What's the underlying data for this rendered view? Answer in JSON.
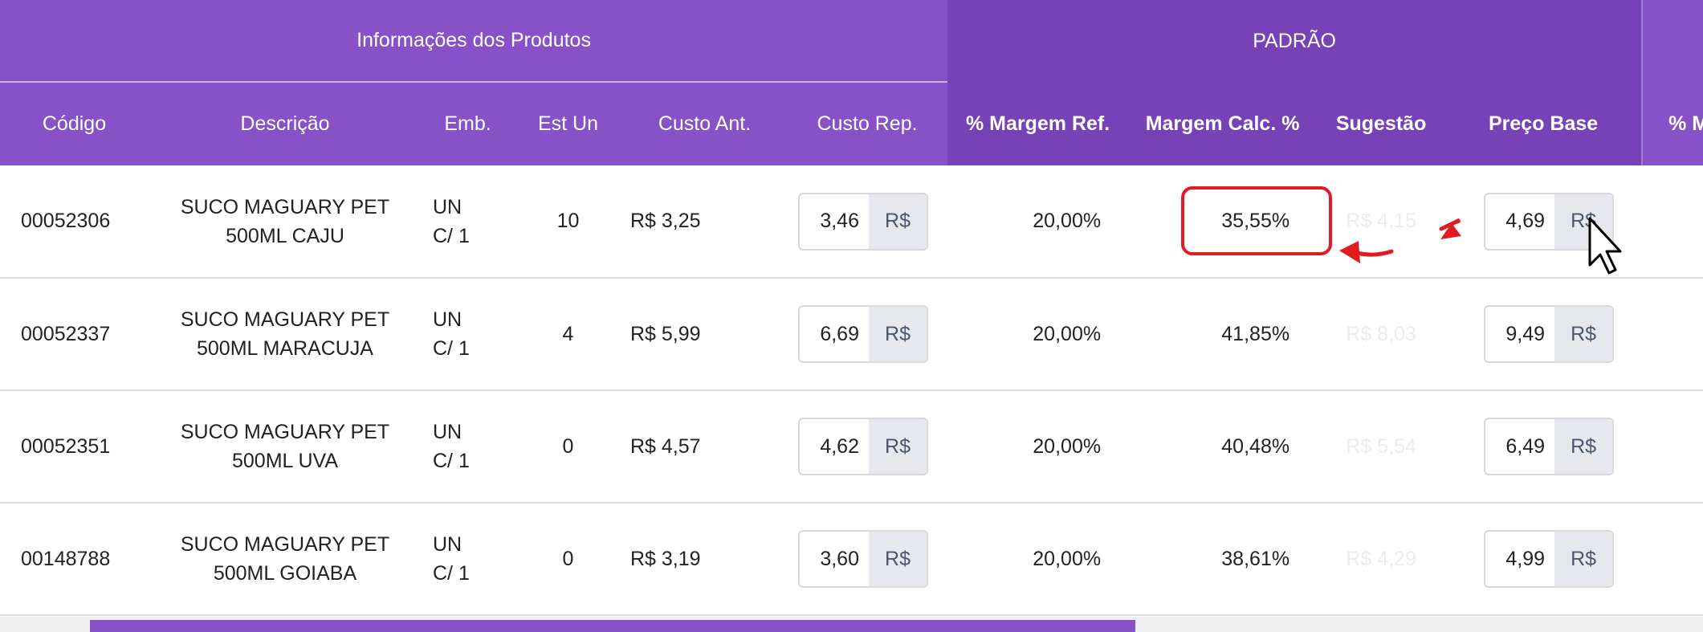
{
  "header_groups": {
    "info": "Informações dos Produtos",
    "padrao": "PADRÃO",
    "next": ""
  },
  "columns": {
    "codigo": "Código",
    "descricao": "Descrição",
    "emb": "Emb.",
    "est_un": "Est Un",
    "custo_ant": "Custo Ant.",
    "custo_rep": "Custo Rep.",
    "margem_ref": "% Margem Ref.",
    "margem_calc": "Margem Calc. %",
    "sugestao": "Sugestão",
    "preco_base": "Preço Base",
    "next": "% M"
  },
  "currency_label": "R$",
  "rows": [
    {
      "codigo": "00052306",
      "desc_line1": "SUCO MAGUARY PET",
      "desc_line2": "500ML CAJU",
      "emb_line1": "UN",
      "emb_line2": "C/ 1",
      "est_un": "10",
      "custo_ant": "R$ 3,25",
      "custo_rep": "3,46",
      "margem_ref": "20,00%",
      "margem_calc": "35,55%",
      "sugestao": "R$ 4,15",
      "preco_base": "4,69"
    },
    {
      "codigo": "00052337",
      "desc_line1": "SUCO MAGUARY PET",
      "desc_line2": "500ML MARACUJA",
      "emb_line1": "UN",
      "emb_line2": "C/ 1",
      "est_un": "4",
      "custo_ant": "R$ 5,99",
      "custo_rep": "6,69",
      "margem_ref": "20,00%",
      "margem_calc": "41,85%",
      "sugestao": "R$ 8,03",
      "preco_base": "9,49"
    },
    {
      "codigo": "00052351",
      "desc_line1": "SUCO MAGUARY PET",
      "desc_line2": "500ML UVA",
      "emb_line1": "UN",
      "emb_line2": "C/ 1",
      "est_un": "0",
      "custo_ant": "R$ 4,57",
      "custo_rep": "4,62",
      "margem_ref": "20,00%",
      "margem_calc": "40,48%",
      "sugestao": "R$ 5,54",
      "preco_base": "6,49"
    },
    {
      "codigo": "00148788",
      "desc_line1": "SUCO MAGUARY PET",
      "desc_line2": "500ML GOIABA",
      "emb_line1": "UN",
      "emb_line2": "C/ 1",
      "est_un": "0",
      "custo_ant": "R$ 3,19",
      "custo_rep": "3,60",
      "margem_ref": "20,00%",
      "margem_calc": "38,61%",
      "sugestao": "R$ 4,29",
      "preco_base": "4,99"
    }
  ],
  "annotation": {
    "color": "#e11b22",
    "highlight_target": "margem_calc of first row"
  },
  "colors": {
    "header_info": "#8752c7",
    "header_padrao": "#7741b7"
  },
  "icons": {
    "cursor": "mouse-pointer-icon",
    "arrows": "arrow-left-icon"
  }
}
